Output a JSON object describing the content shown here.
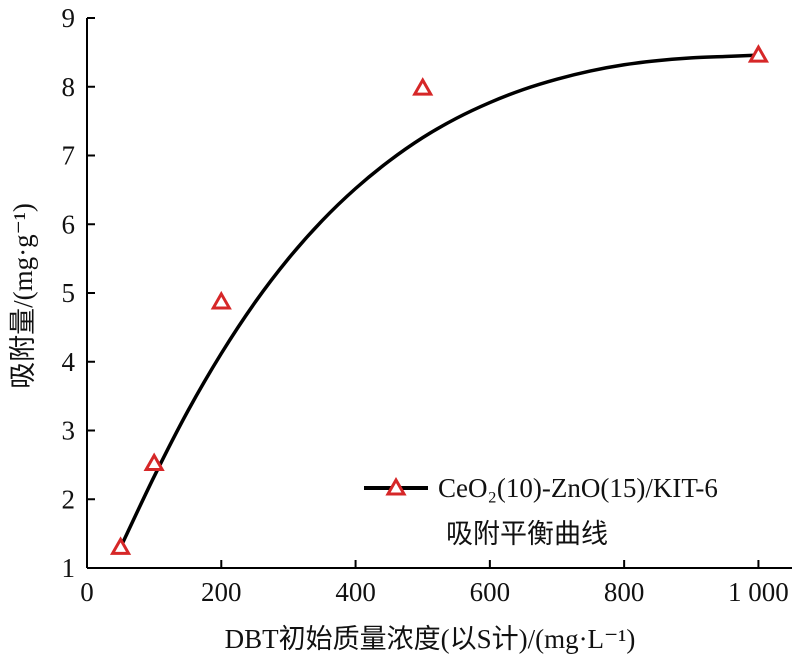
{
  "chart_data": {
    "type": "scatter",
    "x_ticks": [
      0,
      200,
      400,
      600,
      800,
      1000
    ],
    "x_tick_labels": [
      "0",
      "200",
      "400",
      "600",
      "800",
      "1 000"
    ],
    "y_ticks": [
      1,
      2,
      3,
      4,
      5,
      6,
      7,
      8,
      9
    ],
    "y_tick_labels": [
      "1",
      "2",
      "3",
      "4",
      "5",
      "6",
      "7",
      "8",
      "9"
    ],
    "xlim": [
      0,
      1050
    ],
    "ylim": [
      1,
      9
    ],
    "xlabel": "DBT初始质量浓度(以S计)/(mg·L⁻¹)",
    "ylabel": "吸附量/(mg·g⁻¹)",
    "grid": false,
    "legend_position": "bottom-right",
    "series": [
      {
        "name": "CeO₂(10)-ZnO(15)/KIT-6",
        "name_line2": "吸附平衡曲线",
        "marker": "triangle-open",
        "marker_color": "#d62728",
        "line_color": "#000000",
        "points": [
          {
            "x": 50,
            "y": 1.3
          },
          {
            "x": 100,
            "y": 2.52
          },
          {
            "x": 200,
            "y": 4.87
          },
          {
            "x": 500,
            "y": 7.98
          },
          {
            "x": 1000,
            "y": 8.46
          }
        ],
        "fit_curve": [
          {
            "x": 50,
            "y": 1.3
          },
          {
            "x": 100,
            "y": 2.33
          },
          {
            "x": 150,
            "y": 3.28
          },
          {
            "x": 200,
            "y": 4.12
          },
          {
            "x": 250,
            "y": 4.86
          },
          {
            "x": 300,
            "y": 5.5
          },
          {
            "x": 350,
            "y": 6.05
          },
          {
            "x": 400,
            "y": 6.52
          },
          {
            "x": 450,
            "y": 6.92
          },
          {
            "x": 500,
            "y": 7.26
          },
          {
            "x": 550,
            "y": 7.54
          },
          {
            "x": 600,
            "y": 7.77
          },
          {
            "x": 650,
            "y": 7.96
          },
          {
            "x": 700,
            "y": 8.11
          },
          {
            "x": 750,
            "y": 8.23
          },
          {
            "x": 800,
            "y": 8.32
          },
          {
            "x": 850,
            "y": 8.38
          },
          {
            "x": 900,
            "y": 8.42
          },
          {
            "x": 950,
            "y": 8.44
          },
          {
            "x": 1000,
            "y": 8.46
          }
        ]
      }
    ]
  }
}
